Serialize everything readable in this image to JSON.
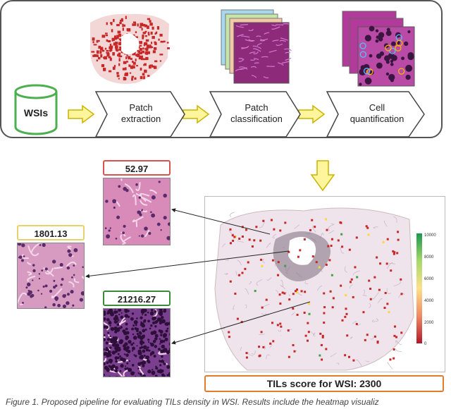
{
  "pipeline": {
    "wsi_label": "WSIs",
    "steps": [
      {
        "line1": "Patch",
        "line2": "extraction"
      },
      {
        "line1": "Patch",
        "line2": "classification"
      },
      {
        "line1": "Cell",
        "line2": "quantification"
      }
    ]
  },
  "patch_scores": [
    "52.97",
    "1801.13",
    "21216.27"
  ],
  "colorbar_ticks": [
    "10000",
    "8000",
    "6000",
    "4000",
    "2000",
    "0"
  ],
  "wsi_score": "TILs score for WSI: 2300",
  "caption": "Figure 1. Proposed pipeline for evaluating TILs density in WSI. Results include the heatmap visualiz",
  "colors": {
    "score_1": "#d9534f",
    "score_2": "#f0e28a",
    "score_3": "#3a8a3a",
    "wsi_score_border": "#e07b2a",
    "cylinder": "#4caf50",
    "arrow_fill": "#fff59d"
  }
}
